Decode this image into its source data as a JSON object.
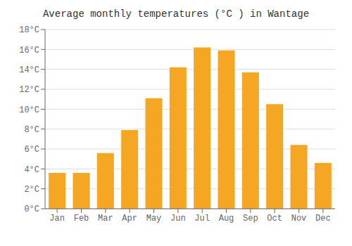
{
  "chart_data": {
    "type": "bar",
    "title": "Average monthly temperatures (°C ) in Wantage",
    "categories": [
      "Jan",
      "Feb",
      "Mar",
      "Apr",
      "May",
      "Jun",
      "Jul",
      "Aug",
      "Sep",
      "Oct",
      "Nov",
      "Dec"
    ],
    "values": [
      3.6,
      3.6,
      5.6,
      7.9,
      11.1,
      14.2,
      16.2,
      15.9,
      13.7,
      10.5,
      6.4,
      4.6
    ],
    "color": "#F5A623",
    "ylim": [
      0,
      18
    ],
    "yticks": [
      {
        "value": 0,
        "label": "0°C"
      },
      {
        "value": 2,
        "label": "2°C"
      },
      {
        "value": 4,
        "label": "4°C"
      },
      {
        "value": 6,
        "label": "6°C"
      },
      {
        "value": 8,
        "label": "8°C"
      },
      {
        "value": 10,
        "label": "10°C"
      },
      {
        "value": 12,
        "label": "12°C"
      },
      {
        "value": 14,
        "label": "14°C"
      },
      {
        "value": 16,
        "label": "16°C"
      },
      {
        "value": 18,
        "label": "18°C"
      }
    ],
    "grid": true
  }
}
